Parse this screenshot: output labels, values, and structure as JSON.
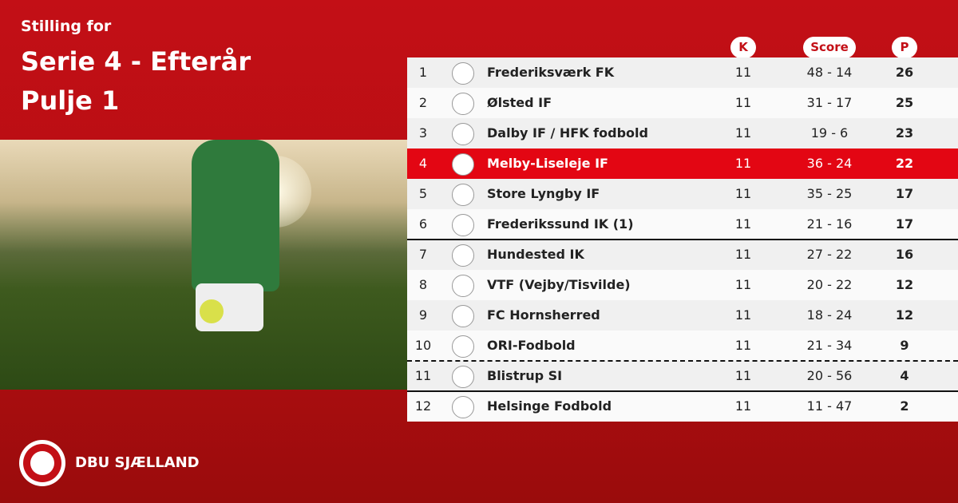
{
  "header": {
    "kicker": "Stilling for",
    "title": "Serie 4 - Efterår",
    "subtitle": "Pulje 1"
  },
  "table": {
    "columns": [
      "K",
      "Score",
      "P"
    ],
    "rows": [
      {
        "rank": 1,
        "team": "Frederiksværk FK",
        "k": 11,
        "score": "48 - 14",
        "p": 26
      },
      {
        "rank": 2,
        "team": "Ølsted IF",
        "k": 11,
        "score": "31 - 17",
        "p": 25
      },
      {
        "rank": 3,
        "team": "Dalby IF / HFK fodbold",
        "k": 11,
        "score": "19 - 6",
        "p": 23
      },
      {
        "rank": 4,
        "team": "Melby-Liseleje IF",
        "k": 11,
        "score": "36 - 24",
        "p": 22
      },
      {
        "rank": 5,
        "team": "Store Lyngby IF",
        "k": 11,
        "score": "35 - 25",
        "p": 17
      },
      {
        "rank": 6,
        "team": "Frederikssund IK (1)",
        "k": 11,
        "score": "21 - 16",
        "p": 17
      },
      {
        "rank": 7,
        "team": "Hundested IK",
        "k": 11,
        "score": "27 - 22",
        "p": 16
      },
      {
        "rank": 8,
        "team": "VTF (Vejby/Tisvilde)",
        "k": 11,
        "score": "20 - 22",
        "p": 12
      },
      {
        "rank": 9,
        "team": "FC Hornsherred",
        "k": 11,
        "score": "18 - 24",
        "p": 12
      },
      {
        "rank": 10,
        "team": "ORI-Fodbold",
        "k": 11,
        "score": "21 - 34",
        "p": 9
      },
      {
        "rank": 11,
        "team": "Blistrup SI",
        "k": 11,
        "score": "20 - 56",
        "p": 4
      },
      {
        "rank": 12,
        "team": "Helsinge Fodbold",
        "k": 11,
        "score": "11 - 47",
        "p": 2
      }
    ]
  },
  "footer": {
    "brand": "DBU SJÆLLAND"
  }
}
